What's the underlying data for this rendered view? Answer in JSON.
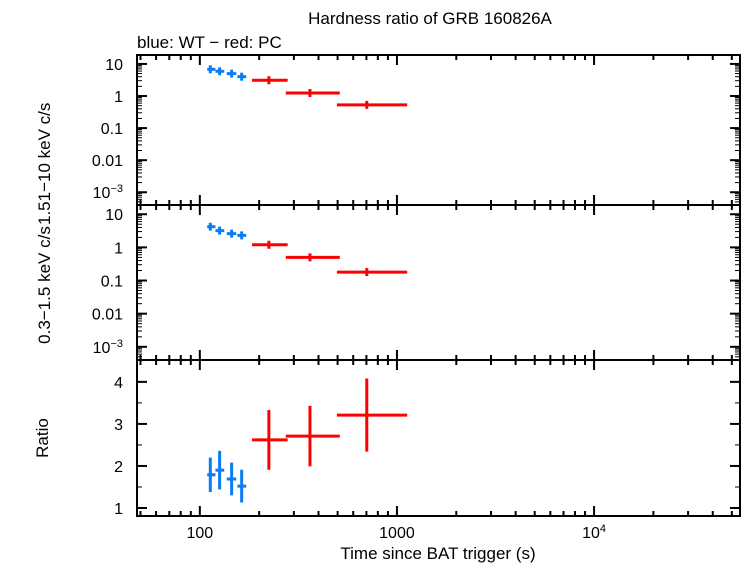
{
  "chart_data": [
    {
      "type": "scatter",
      "title": "Hardness ratio of GRB 160826A",
      "subtitle": "blue: WT − red: PC",
      "ylabel": "1.51−10 keV c/s",
      "yscale": "log",
      "ylim": [
        0.0004,
        19
      ],
      "xscale": "log",
      "xlim": [
        48,
        55000
      ],
      "yticks": [
        "10",
        "1",
        "0.1",
        "0.01",
        "10−3"
      ],
      "series": [
        {
          "color": "#0a7df5",
          "x": [
            113,
            126,
            145,
            163
          ],
          "xerr": [
            [
              109,
              120
            ],
            [
              120,
              133
            ],
            [
              137,
              153
            ],
            [
              155,
              172
            ]
          ],
          "y": [
            6.8,
            5.9,
            5.0,
            4.0
          ]
        },
        {
          "color": "#ff0000",
          "x": [
            224,
            362,
            703
          ],
          "xerr": [
            [
              184,
              279
            ],
            [
              273,
              513
            ],
            [
              496,
              1127
            ]
          ],
          "y": [
            3.1,
            1.24,
            0.53
          ]
        }
      ]
    },
    {
      "type": "scatter",
      "ylabel": "0.3−1.5 keV c/s",
      "yscale": "log",
      "ylim": [
        0.0004,
        19
      ],
      "xscale": "log",
      "xlim": [
        48,
        55000
      ],
      "yticks": [
        "10",
        "1",
        "0.1",
        "0.01",
        "10−3"
      ],
      "series": [
        {
          "color": "#0a7df5",
          "x": [
            113,
            126,
            145,
            163
          ],
          "xerr": [
            [
              109,
              120
            ],
            [
              120,
              133
            ],
            [
              137,
              153
            ],
            [
              155,
              172
            ]
          ],
          "y": [
            4.2,
            3.2,
            2.6,
            2.3
          ]
        },
        {
          "color": "#ff0000",
          "x": [
            224,
            362,
            703
          ],
          "xerr": [
            [
              184,
              279
            ],
            [
              273,
              513
            ],
            [
              496,
              1127
            ]
          ],
          "y": [
            1.2,
            0.5,
            0.18
          ]
        }
      ]
    },
    {
      "type": "scatter",
      "ylabel": "Ratio",
      "xlabel": "Time since BAT trigger (s)",
      "yscale": "linear",
      "ylim": [
        0.81,
        4.52
      ],
      "xscale": "log",
      "xlim": [
        48,
        55000
      ],
      "xticks": [
        "100",
        "1000",
        "10⁴"
      ],
      "yticks": [
        "4",
        "3",
        "2",
        "1"
      ],
      "series": [
        {
          "color": "#0a7df5",
          "x": [
            113,
            126,
            145,
            163
          ],
          "xerr": [
            [
              109,
              120
            ],
            [
              120,
              133
            ],
            [
              137,
              153
            ],
            [
              155,
              172
            ]
          ],
          "y": [
            1.79,
            1.9,
            1.69,
            1.52
          ],
          "yerr": [
            0.41,
            0.46,
            0.39,
            0.39
          ]
        },
        {
          "color": "#ff0000",
          "x": [
            224,
            362,
            703
          ],
          "xerr": [
            [
              184,
              279
            ],
            [
              273,
              513
            ],
            [
              496,
              1127
            ]
          ],
          "y": [
            2.62,
            2.71,
            3.21
          ],
          "yerr": [
            0.71,
            0.72,
            0.87
          ]
        }
      ]
    }
  ]
}
